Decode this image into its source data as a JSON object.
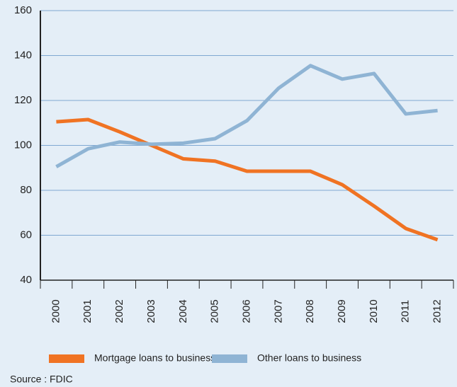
{
  "chart_data": {
    "type": "line",
    "categories": [
      "2000",
      "2001",
      "2002",
      "2003",
      "2004",
      "2005",
      "2006",
      "2007",
      "2008",
      "2009",
      "2010",
      "2011",
      "2012"
    ],
    "series": [
      {
        "name": "Mortgage loans to businesses",
        "color": "#f07323",
        "values": [
          110.5,
          111.5,
          106,
          100,
          94,
          93,
          88.5,
          88.5,
          88.5,
          82.5,
          73,
          63,
          58
        ]
      },
      {
        "name": "Other loans to business",
        "color": "#8fb4d4",
        "values": [
          90.5,
          98.5,
          101.5,
          100.5,
          101,
          103,
          111,
          125.5,
          135.5,
          129.5,
          132,
          114,
          115.5
        ]
      }
    ],
    "ylim": [
      40,
      160
    ],
    "yticks": [
      40,
      60,
      80,
      100,
      120,
      140,
      160
    ],
    "grid": true,
    "source": "Source : FDIC"
  }
}
